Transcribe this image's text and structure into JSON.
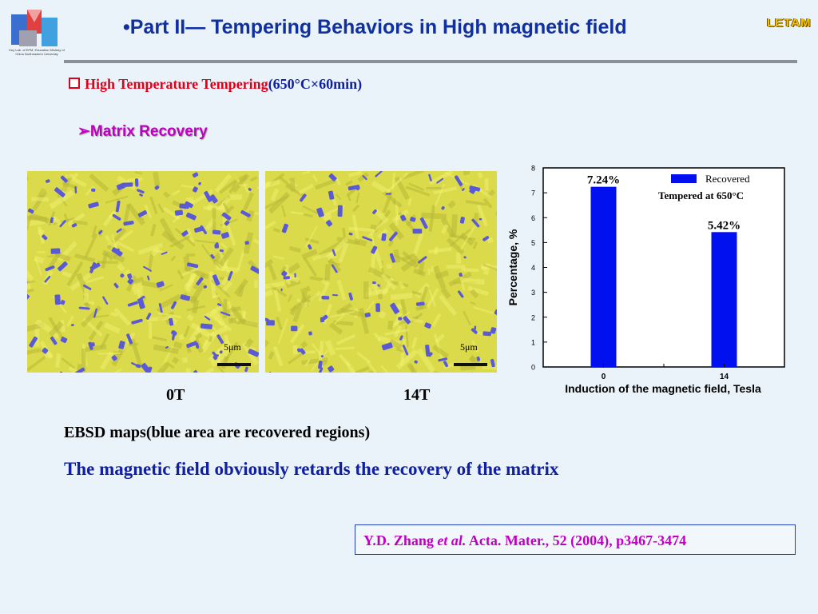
{
  "slide": {
    "title": "•Part II— Tempering Behaviors in High magnetic field",
    "brand": "LETAM",
    "logo_caption": "Key Lab. of EPM, Education Ministry of China  Northeastern University",
    "subheading": {
      "red_text": "High Temperature Tempering",
      "blue_text": "(650°C×60min)"
    },
    "section_title": "Matrix Recovery",
    "section_bullet": "➢",
    "images": [
      {
        "label": "0T",
        "scale": "5μm"
      },
      {
        "label": "14T",
        "scale": "5μm"
      }
    ],
    "ebsd_caption": "EBSD maps(blue area are recovered regions)",
    "conclusion": "The magnetic field obviously retards the recovery of the matrix",
    "reference": {
      "authors": "Y.D. Zhang",
      "etal": "et al.",
      "citation": "Acta. Mater., 52 (2004), p3467-3474"
    }
  },
  "colors": {
    "title_blue": "#1030a0",
    "heading_red": "#e0001a",
    "magenta": "#c000c0",
    "bar_blue": "#0010ee",
    "ebsd_yellow": "#dada4a",
    "ebsd_blue": "#5a5ad8"
  },
  "chart_data": {
    "type": "bar",
    "categories": [
      "0",
      "14"
    ],
    "values": [
      7.24,
      5.42
    ],
    "data_labels": [
      "7.24%",
      "5.42%"
    ],
    "series": [
      {
        "name": "Recovered",
        "values": [
          7.24,
          5.42
        ]
      }
    ],
    "annotation": "Tempered at 650°C",
    "xlabel": "Induction of the magnetic field,  Tesla",
    "ylabel": "Percentage,  %",
    "ylim": [
      0,
      8
    ],
    "yticks": [
      0,
      1,
      2,
      3,
      4,
      5,
      6,
      7,
      8
    ],
    "legend_position": "top-right",
    "grid": false
  }
}
